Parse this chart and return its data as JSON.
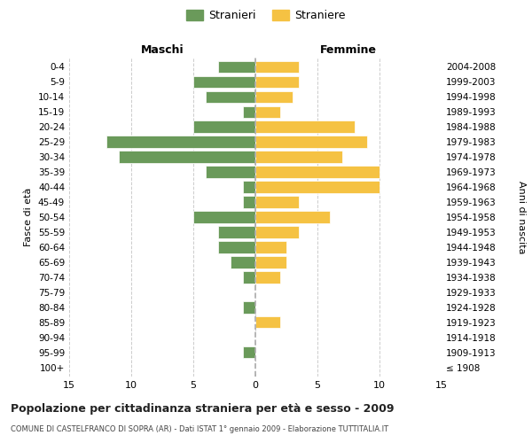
{
  "age_groups": [
    "100+",
    "95-99",
    "90-94",
    "85-89",
    "80-84",
    "75-79",
    "70-74",
    "65-69",
    "60-64",
    "55-59",
    "50-54",
    "45-49",
    "40-44",
    "35-39",
    "30-34",
    "25-29",
    "20-24",
    "15-19",
    "10-14",
    "5-9",
    "0-4"
  ],
  "birth_years": [
    "≤ 1908",
    "1909-1913",
    "1914-1918",
    "1919-1923",
    "1924-1928",
    "1929-1933",
    "1934-1938",
    "1939-1943",
    "1944-1948",
    "1949-1953",
    "1954-1958",
    "1959-1963",
    "1964-1968",
    "1969-1973",
    "1974-1978",
    "1979-1983",
    "1984-1988",
    "1989-1993",
    "1994-1998",
    "1999-2003",
    "2004-2008"
  ],
  "maschi": [
    0,
    1,
    0,
    0,
    1,
    0,
    1,
    2,
    3,
    3,
    5,
    1,
    1,
    4,
    11,
    12,
    5,
    1,
    4,
    5,
    3
  ],
  "femmine": [
    0,
    0,
    0,
    2,
    0,
    0,
    2,
    2.5,
    2.5,
    3.5,
    6,
    3.5,
    10,
    10,
    7,
    9,
    8,
    2,
    3,
    3.5,
    3.5
  ],
  "color_maschi": "#6a9a5a",
  "color_femmine": "#f5c243",
  "title": "Popolazione per cittadinanza straniera per età e sesso - 2009",
  "subtitle": "COMUNE DI CASTELFRANCO DI SOPRA (AR) - Dati ISTAT 1° gennaio 2009 - Elaborazione TUTTITALIA.IT",
  "legend_maschi": "Stranieri",
  "legend_femmine": "Straniere",
  "label_maschi": "Maschi",
  "label_femmine": "Femmine",
  "ylabel_left": "Fasce di età",
  "ylabel_right": "Anni di nascita",
  "xlim": 15,
  "background_color": "#ffffff",
  "grid_color": "#cccccc"
}
